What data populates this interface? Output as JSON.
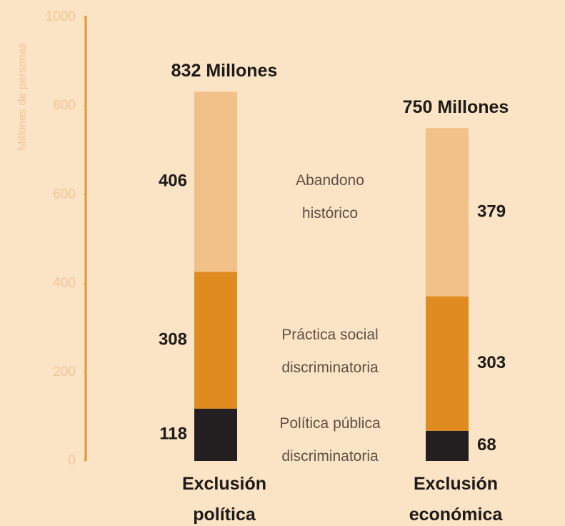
{
  "chart_data": {
    "type": "stacked_bar",
    "y_label": "Millones de personas",
    "categories": [
      "Exclusión política",
      "Exclusión económica"
    ],
    "series": [
      {
        "name": "Política pública discriminatoria",
        "color": "#231f20",
        "values": [
          118,
          68
        ]
      },
      {
        "name": "Práctica social discriminatoria",
        "color": "#e08b1f",
        "values": [
          308,
          303
        ]
      },
      {
        "name": "Abandono histórico",
        "color": "#f2c089",
        "values": [
          406,
          379
        ]
      }
    ],
    "total_labels": [
      "832 Millones",
      "750 Millones"
    ],
    "ylim": [
      0,
      1000
    ],
    "yticks": [
      0,
      200,
      400,
      600,
      800,
      1000
    ],
    "axis_color": "#e6952e",
    "tick_color": "#f3c596"
  }
}
